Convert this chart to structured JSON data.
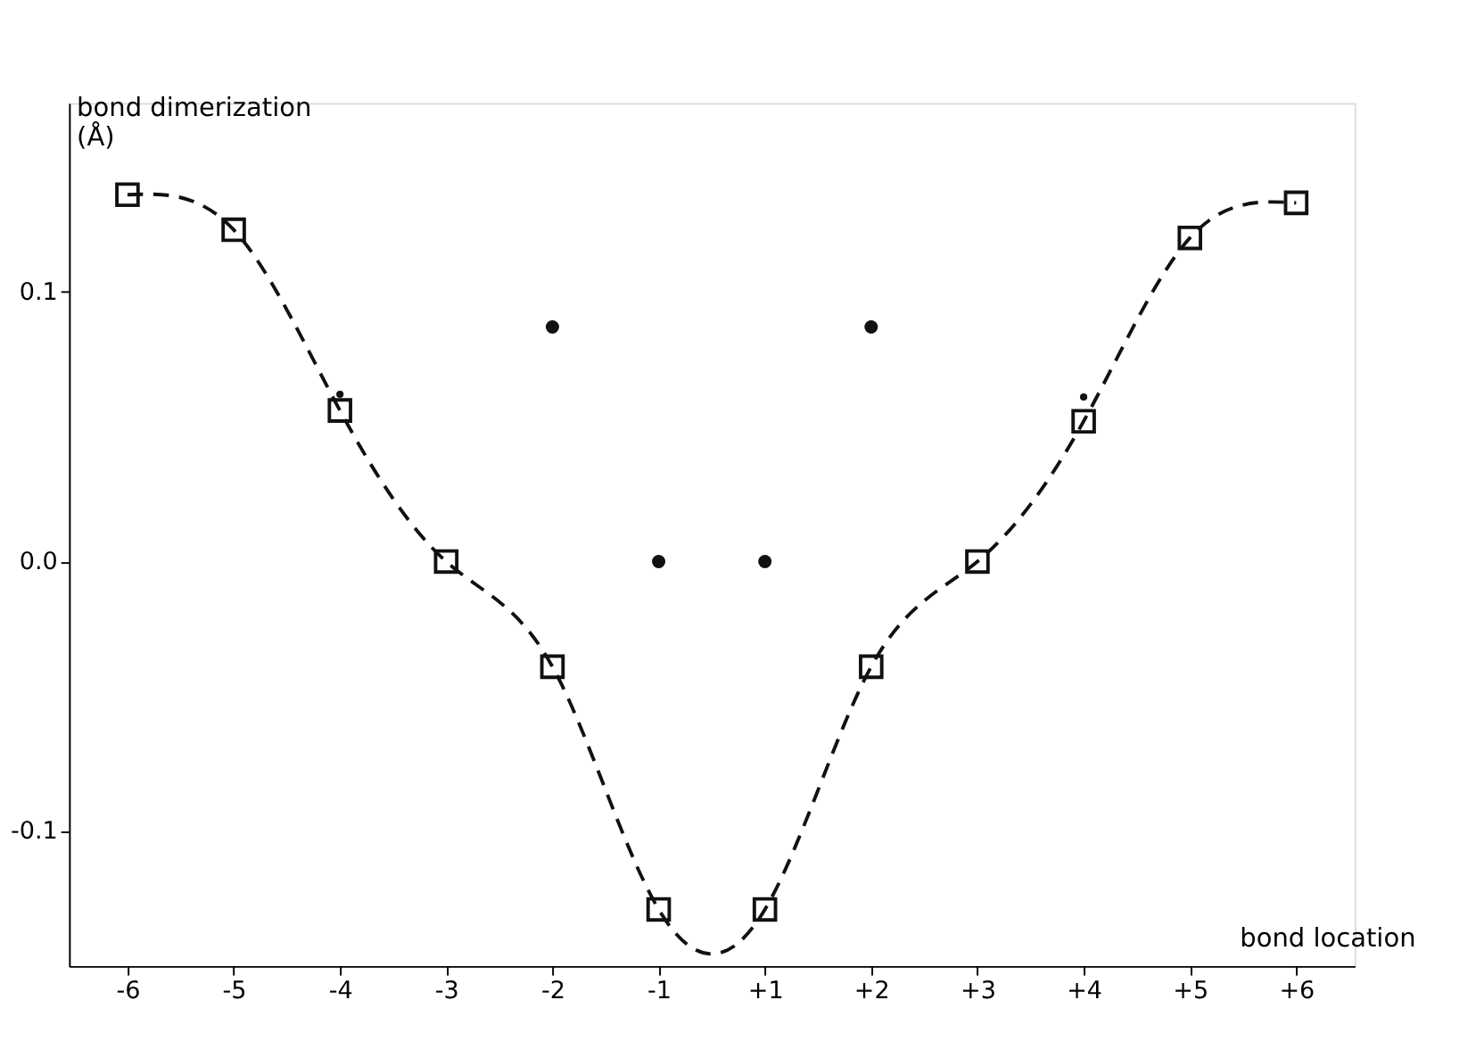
{
  "chart_data": {
    "type": "line",
    "xlabel": "bond location",
    "ylabel": "bond dimerization\n(Å)",
    "categories": [
      "-6",
      "-5",
      "-4",
      "-3",
      "-2",
      "-1",
      "+1",
      "+2",
      "+3",
      "+4",
      "+5",
      "+6"
    ],
    "series": [
      {
        "color": "#111111",
        "marker": "square",
        "line_style": "dashed",
        "values": [
          0.136,
          0.123,
          0.056,
          0.0,
          -0.039,
          -0.129,
          -0.129,
          -0.039,
          0.0,
          0.052,
          0.12,
          0.133
        ]
      },
      {
        "type": "scatter",
        "color": "#111111",
        "marker": "circle",
        "values": [
          null,
          null,
          null,
          null,
          0.087,
          0.0,
          0.0,
          0.087,
          null,
          null,
          null,
          null
        ]
      },
      {
        "type": "scatter",
        "color": "#111111",
        "marker": "circle",
        "values": [
          null,
          null,
          0.062,
          null,
          null,
          null,
          null,
          null,
          null,
          0.061,
          null,
          null
        ]
      }
    ],
    "ylim": [
      -0.15,
      0.17
    ],
    "yticks": [
      {
        "value": -0.1,
        "label": "-0.1"
      },
      {
        "value": 0.0,
        "label": "0.0"
      },
      {
        "value": 0.1,
        "label": "0.1"
      }
    ],
    "grid": false
  }
}
